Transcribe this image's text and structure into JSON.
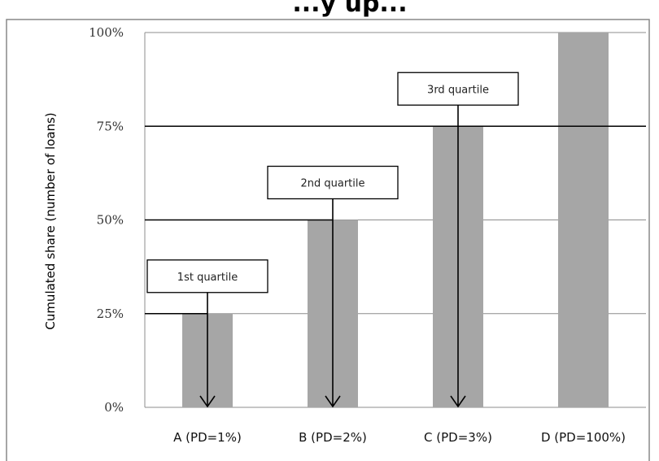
{
  "chart_data": {
    "type": "bar",
    "title": "...y up...",
    "ylabel": "Cumulated share (number of loans)",
    "xlabel": "",
    "categories": [
      "A (PD=1%)",
      "B (PD=2%)",
      "C (PD=3%)",
      "D (PD=100%)"
    ],
    "values": [
      25,
      50,
      75,
      100
    ],
    "ylim": [
      0,
      100
    ],
    "y_ticks": [
      0,
      25,
      50,
      75,
      100
    ],
    "y_tick_labels": [
      "0%",
      "25%",
      "50%",
      "75%",
      "100%"
    ],
    "grid": true,
    "legend": "none",
    "annotations": [
      {
        "text": "1st quartile",
        "category": "A (PD=1%)",
        "level": 25
      },
      {
        "text": "2nd quartile",
        "category": "B (PD=2%)",
        "level": 50
      },
      {
        "text": "3rd quartile",
        "category": "C (PD=3%)",
        "level": 75
      }
    ],
    "colors": {
      "bar": "#a6a6a6",
      "grid": "#8c8c8c",
      "quartile_line": "#000000"
    }
  }
}
